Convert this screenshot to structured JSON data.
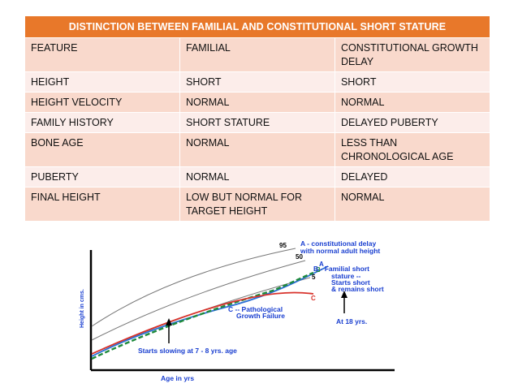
{
  "table": {
    "title": "DISTINCTION BETWEEN FAMILIAL AND CONSTITUTIONAL SHORT STATURE",
    "rows": [
      [
        "FEATURE",
        "FAMILIAL",
        "CONSTITUTIONAL GROWTH DELAY"
      ],
      [
        "HEIGHT",
        "SHORT",
        "SHORT"
      ],
      [
        "HEIGHT VELOCITY",
        "NORMAL",
        "NORMAL"
      ],
      [
        "FAMILY HISTORY",
        "SHORT STATURE",
        "DELAYED PUBERTY"
      ],
      [
        "BONE AGE",
        "NORMAL",
        "LESS THAN CHRONOLOGICAL AGE"
      ],
      [
        "PUBERTY",
        "NORMAL",
        "DELAYED"
      ],
      [
        "FINAL HEIGHT",
        "LOW BUT NORMAL FOR TARGET HEIGHT",
        "NORMAL"
      ]
    ]
  },
  "figure": {
    "y_axis_label": "Height in cms.",
    "x_axis_label": "Age in yrs",
    "percentile_95": "95",
    "percentile_50": "50",
    "percentile_5": "5",
    "label_a_marker": "A",
    "label_b_marker": "B",
    "label_c_marker": "C",
    "annotation_a_line1": "A - constitutional delay",
    "annotation_a_line2": "with normal adult height",
    "annotation_b_line1": "B -  Familial short",
    "annotation_b_line2": "stature --",
    "annotation_b_line3": "Starts short",
    "annotation_b_line4": "& remains short",
    "annotation_c_line1": "C -- Pathological",
    "annotation_c_line2": "Growth Failure",
    "annotation_start": "Starts slowing at 7 - 8 yrs. age",
    "annotation_18": "At 18 yrs.",
    "colors": {
      "header_bg": "#e8782a",
      "row_odd": "#f9d9cc",
      "row_even": "#fcedea",
      "annotation_blue": "#1a3fd0",
      "curve_constitutional": "#2a6fd6",
      "curve_familial": "#1e8a3c",
      "curve_pathological": "#d8322b"
    }
  }
}
